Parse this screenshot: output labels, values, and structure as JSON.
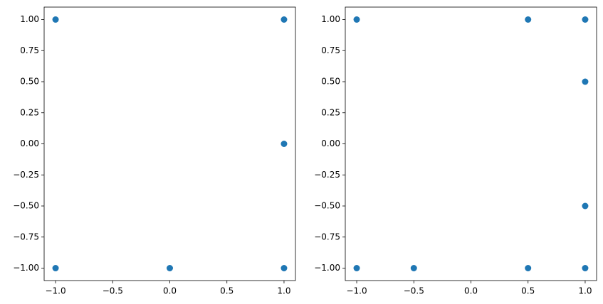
{
  "chart_data": [
    {
      "type": "scatter",
      "color": "#1f77b4",
      "x": [
        -1,
        1,
        1,
        -1,
        0,
        1
      ],
      "values": [
        1,
        1,
        0,
        -1,
        -1,
        -1
      ],
      "xlim": [
        -1.1,
        1.1
      ],
      "ylim": [
        -1.1,
        1.1
      ],
      "xticks": [
        {
          "value": -1,
          "label": "−1.0"
        },
        {
          "value": -0.5,
          "label": "−0.5"
        },
        {
          "value": 0,
          "label": "0.0"
        },
        {
          "value": 0.5,
          "label": "0.5"
        },
        {
          "value": 1,
          "label": "1.0"
        }
      ],
      "yticks": [
        {
          "value": -1,
          "label": "−1.00"
        },
        {
          "value": -0.75,
          "label": "−0.75"
        },
        {
          "value": -0.5,
          "label": "−0.50"
        },
        {
          "value": -0.25,
          "label": "−0.25"
        },
        {
          "value": 0,
          "label": "0.00"
        },
        {
          "value": 0.25,
          "label": "0.25"
        },
        {
          "value": 0.5,
          "label": "0.50"
        },
        {
          "value": 0.75,
          "label": "0.75"
        },
        {
          "value": 1,
          "label": "1.00"
        }
      ]
    },
    {
      "type": "scatter",
      "color": "#1f77b4",
      "x": [
        -1,
        0.5,
        1,
        1,
        1,
        -1,
        -0.5,
        0.5,
        1
      ],
      "values": [
        1,
        1,
        1,
        0.5,
        -0.5,
        -1,
        -1,
        -1,
        -1
      ],
      "xlim": [
        -1.1,
        1.1
      ],
      "ylim": [
        -1.1,
        1.1
      ],
      "xticks": [
        {
          "value": -1,
          "label": "−1.0"
        },
        {
          "value": -0.5,
          "label": "−0.5"
        },
        {
          "value": 0,
          "label": "0.0"
        },
        {
          "value": 0.5,
          "label": "0.5"
        },
        {
          "value": 1,
          "label": "1.0"
        }
      ],
      "yticks": [
        {
          "value": -1,
          "label": "−1.00"
        },
        {
          "value": -0.75,
          "label": "−0.75"
        },
        {
          "value": -0.5,
          "label": "−0.50"
        },
        {
          "value": -0.25,
          "label": "−0.25"
        },
        {
          "value": 0,
          "label": "0.00"
        },
        {
          "value": 0.25,
          "label": "0.25"
        },
        {
          "value": 0.5,
          "label": "0.50"
        },
        {
          "value": 0.75,
          "label": "0.75"
        },
        {
          "value": 1,
          "label": "1.00"
        }
      ]
    }
  ]
}
